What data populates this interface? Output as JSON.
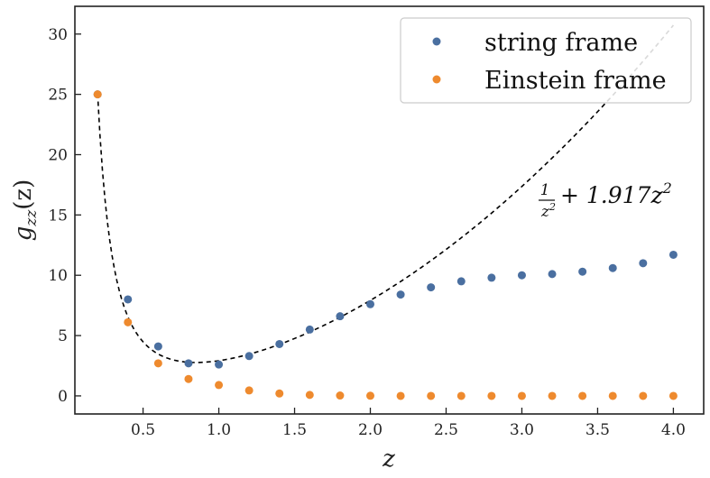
{
  "chart_data": {
    "type": "scatter",
    "title": "",
    "xlabel": "z",
    "ylabel_main": "g",
    "ylabel_sub": "zz",
    "ylabel_arg": "(z)",
    "xlim": [
      0.05,
      4.2
    ],
    "ylim": [
      -1.5,
      32.3
    ],
    "xticks": [
      0.5,
      1.0,
      1.5,
      2.0,
      2.5,
      3.0,
      3.5,
      4.0
    ],
    "xtick_labels": [
      "0.5",
      "1.0",
      "1.5",
      "2.0",
      "2.5",
      "3.0",
      "3.5",
      "4.0"
    ],
    "yticks": [
      0,
      5,
      10,
      15,
      20,
      25,
      30
    ],
    "ytick_labels": [
      "0",
      "5",
      "10",
      "15",
      "20",
      "25",
      "30"
    ],
    "legend_position": "top-right",
    "series": [
      {
        "name": "string frame",
        "color": "#4a6fa0",
        "x": [
          0.2,
          0.4,
          0.6,
          0.8,
          1.0,
          1.2,
          1.4,
          1.6,
          1.8,
          2.0,
          2.2,
          2.4,
          2.6,
          2.8,
          3.0,
          3.2,
          3.4,
          3.6,
          3.8,
          4.0
        ],
        "y": [
          25.0,
          8.0,
          4.1,
          2.7,
          2.6,
          3.3,
          4.3,
          5.5,
          6.6,
          7.6,
          8.4,
          9.0,
          9.5,
          9.8,
          10.0,
          10.1,
          10.3,
          10.6,
          11.0,
          11.7
        ]
      },
      {
        "name": "Einstein frame",
        "color": "#ee8a2e",
        "x": [
          0.2,
          0.4,
          0.6,
          0.8,
          1.0,
          1.2,
          1.4,
          1.6,
          1.8,
          2.0,
          2.2,
          2.4,
          2.6,
          2.8,
          3.0,
          3.2,
          3.4,
          3.6,
          3.8,
          4.0
        ],
        "y": [
          25.0,
          6.1,
          2.7,
          1.4,
          0.9,
          0.45,
          0.2,
          0.08,
          0.03,
          0.01,
          0.0,
          0.0,
          0.0,
          0.0,
          0.0,
          0.0,
          0.0,
          0.0,
          0.0,
          0.0
        ]
      }
    ],
    "fit_curve": {
      "style": "dashed",
      "color": "#000000",
      "coefficient": 1.917,
      "x_range": [
        0.2,
        4.0
      ]
    },
    "annotation": {
      "frac_num": "1",
      "frac_den": "z",
      "frac_den_exp": "2",
      "rest": "+ 1.917z",
      "rest_exp": "2"
    }
  }
}
